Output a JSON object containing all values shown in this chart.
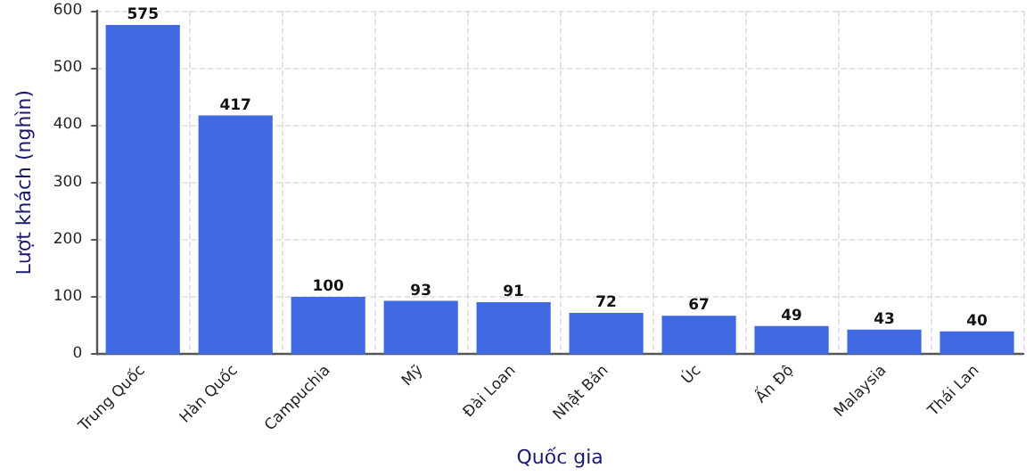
{
  "chart_data": {
    "type": "bar",
    "xlabel": "Quốc gia",
    "ylabel": "Lượt khách (nghìn)",
    "categories": [
      "Trung Quốc",
      "Hàn Quốc",
      "Campuchia",
      "Mỹ",
      "Đài Loan",
      "Nhật Bản",
      "Úc",
      "Ấn Độ",
      "Malaysia",
      "Thái Lan"
    ],
    "values": [
      575,
      417,
      100,
      93,
      91,
      72,
      67,
      49,
      43,
      40
    ],
    "color": "#4169e1",
    "ylim": [
      0,
      600
    ],
    "yticks": [
      0,
      100,
      200,
      300,
      400,
      500,
      600
    ],
    "grid": true,
    "data_labels": true
  }
}
